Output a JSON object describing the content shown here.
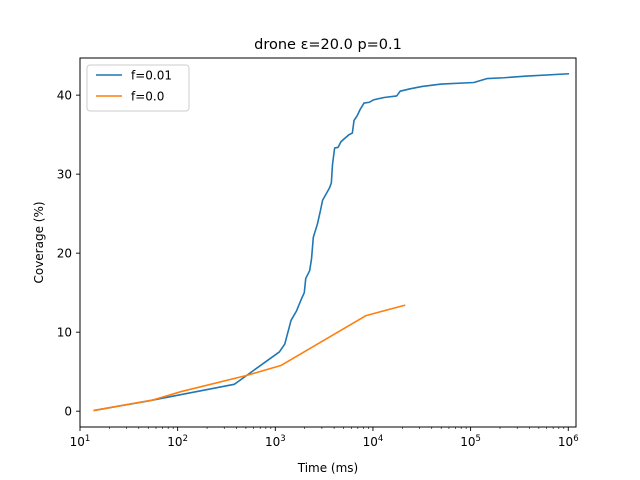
{
  "chart_data": {
    "type": "line",
    "title": "drone ε=20.0 p=0.1",
    "xlabel": "Time (ms)",
    "ylabel": "Coverage (%)",
    "xscale": "log",
    "xlim": [
      10,
      1200000
    ],
    "ylim": [
      -2,
      44.7
    ],
    "x_ticks": [
      {
        "value": 10,
        "base": "10",
        "exp": "1"
      },
      {
        "value": 100,
        "base": "10",
        "exp": "2"
      },
      {
        "value": 1000,
        "base": "10",
        "exp": "3"
      },
      {
        "value": 10000,
        "base": "10",
        "exp": "4"
      },
      {
        "value": 100000,
        "base": "10",
        "exp": "5"
      },
      {
        "value": 1000000,
        "base": "10",
        "exp": "6"
      }
    ],
    "y_ticks": [
      {
        "value": 0,
        "label": "0"
      },
      {
        "value": 10,
        "label": "10"
      },
      {
        "value": 20,
        "label": "20"
      },
      {
        "value": 30,
        "label": "30"
      },
      {
        "value": 40,
        "label": "40"
      }
    ],
    "grid": false,
    "legend_position": "upper-left",
    "series": [
      {
        "name": "f=0.01",
        "color": "#1f77b4",
        "points": [
          [
            14,
            0.1
          ],
          [
            50,
            1.3
          ],
          [
            380,
            3.4
          ],
          [
            1100,
            7.5
          ],
          [
            1250,
            8.5
          ],
          [
            1450,
            11.5
          ],
          [
            1650,
            12.7
          ],
          [
            1850,
            14.2
          ],
          [
            1980,
            15.0
          ],
          [
            2050,
            16.8
          ],
          [
            2250,
            17.8
          ],
          [
            2350,
            19.3
          ],
          [
            2450,
            22.0
          ],
          [
            2700,
            23.7
          ],
          [
            2900,
            25.4
          ],
          [
            3050,
            26.7
          ],
          [
            3350,
            27.6
          ],
          [
            3600,
            28.3
          ],
          [
            3750,
            28.9
          ],
          [
            3850,
            31.2
          ],
          [
            4050,
            33.3
          ],
          [
            4400,
            33.4
          ],
          [
            4700,
            34.1
          ],
          [
            5100,
            34.5
          ],
          [
            5700,
            35.0
          ],
          [
            6150,
            35.2
          ],
          [
            6400,
            36.8
          ],
          [
            6900,
            37.4
          ],
          [
            7400,
            38.2
          ],
          [
            8100,
            39.0
          ],
          [
            9200,
            39.1
          ],
          [
            10100,
            39.4
          ],
          [
            13000,
            39.7
          ],
          [
            17500,
            39.9
          ],
          [
            19000,
            40.5
          ],
          [
            24000,
            40.8
          ],
          [
            32000,
            41.1
          ],
          [
            50000,
            41.4
          ],
          [
            108000,
            41.6
          ],
          [
            148000,
            42.1
          ],
          [
            220000,
            42.2
          ],
          [
            360000,
            42.4
          ],
          [
            1000000,
            42.7
          ]
        ]
      },
      {
        "name": "f=0.0",
        "color": "#ff7f0e",
        "points": [
          [
            14,
            0.1
          ],
          [
            55,
            1.4
          ],
          [
            110,
            2.5
          ],
          [
            500,
            4.5
          ],
          [
            1150,
            5.8
          ],
          [
            8500,
            12.1
          ],
          [
            21000,
            13.4
          ]
        ]
      }
    ]
  }
}
